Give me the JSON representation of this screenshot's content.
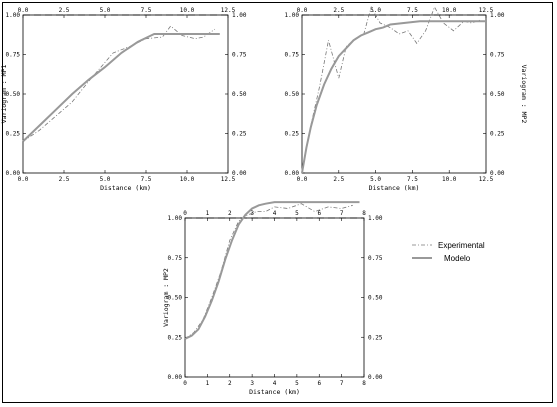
{
  "chart_data": [
    {
      "type": "line",
      "xlabel": "Distance (km)",
      "ylabel": "Variogram : MP1",
      "xlim": [
        0,
        12.5
      ],
      "ylim": [
        0,
        1.0
      ],
      "xticks": [
        "0.0",
        "2.5",
        "5.0",
        "7.5",
        "10.0",
        "12.5"
      ],
      "yticks": [
        "0.00",
        "0.25",
        "0.50",
        "0.75",
        "1.00"
      ],
      "sill": 1.0,
      "series": [
        {
          "x": [
            0.0,
            1.0,
            2.0,
            3.0,
            4.0,
            5.0,
            5.5,
            6.5,
            7.5,
            8.5,
            9.0,
            9.7,
            10.5,
            11.0,
            11.7
          ],
          "y": [
            0.2,
            0.27,
            0.36,
            0.45,
            0.58,
            0.7,
            0.76,
            0.8,
            0.85,
            0.86,
            0.93,
            0.87,
            0.85,
            0.86,
            0.91
          ]
        },
        {
          "x": [
            0.0,
            1.0,
            2.0,
            3.0,
            4.0,
            5.0,
            6.0,
            7.0,
            8.0,
            9.0,
            10.0,
            11.0,
            12.0
          ],
          "y": [
            0.2,
            0.3,
            0.4,
            0.5,
            0.59,
            0.67,
            0.76,
            0.83,
            0.88,
            0.88,
            0.88,
            0.88,
            0.88
          ]
        }
      ]
    },
    {
      "type": "line",
      "xlabel": "Distance (km)",
      "ylabel": "Variogram : MP2",
      "xlim": [
        0,
        12.5
      ],
      "ylim": [
        0,
        1.0
      ],
      "xticks": [
        "0.0",
        "2.5",
        "5.0",
        "7.5",
        "10.0",
        "12.5"
      ],
      "yticks": [
        "0.00",
        "0.25",
        "0.50",
        "0.75",
        "1.00"
      ],
      "sill": 1.0,
      "series": [
        {
          "x": [
            0.0,
            0.6,
            1.2,
            1.8,
            2.5,
            3.0,
            3.6,
            4.2,
            4.7,
            5.3,
            6.0,
            6.6,
            7.2,
            7.8,
            8.4,
            9.0,
            9.6,
            10.3,
            11.0,
            11.5,
            12.2
          ],
          "y": [
            0.02,
            0.3,
            0.55,
            0.84,
            0.6,
            0.8,
            0.85,
            0.88,
            1.05,
            0.95,
            0.92,
            0.88,
            0.9,
            0.82,
            0.9,
            1.05,
            0.95,
            0.9,
            0.96,
            0.95,
            0.97
          ]
        },
        {
          "x": [
            0.0,
            0.3,
            0.6,
            1.0,
            1.5,
            2.0,
            2.5,
            3.0,
            3.5,
            4.0,
            4.5,
            5.0,
            5.5,
            6.0,
            7.0,
            8.0,
            9.0,
            10.0,
            11.0,
            12.5
          ],
          "y": [
            0.0,
            0.16,
            0.29,
            0.43,
            0.56,
            0.66,
            0.74,
            0.79,
            0.84,
            0.87,
            0.89,
            0.91,
            0.92,
            0.94,
            0.95,
            0.96,
            0.96,
            0.96,
            0.96,
            0.96
          ]
        }
      ]
    },
    {
      "type": "line",
      "xlabel": "Distance (km)",
      "ylabel": "Variogram : MP2",
      "xlim": [
        0,
        8
      ],
      "ylim": [
        0,
        1.0
      ],
      "xticks": [
        "0",
        "1",
        "2",
        "3",
        "4",
        "5",
        "6",
        "7",
        "8"
      ],
      "yticks": [
        "0.00",
        "0.25",
        "0.50",
        "0.75",
        "1.00"
      ],
      "sill": 1.0,
      "series": [
        {
          "name": "Experimental",
          "x": [
            0.0,
            0.4,
            0.8,
            1.2,
            1.6,
            2.0,
            2.4,
            2.8,
            3.2,
            3.6,
            4.0,
            4.6,
            5.2,
            5.8,
            6.4,
            7.0,
            7.5
          ],
          "y": [
            0.24,
            0.28,
            0.36,
            0.5,
            0.66,
            0.86,
            0.98,
            1.02,
            1.04,
            1.04,
            1.07,
            1.06,
            1.09,
            1.04,
            1.07,
            1.06,
            1.08
          ]
        },
        {
          "name": "Modelo",
          "x": [
            0.0,
            0.3,
            0.6,
            0.9,
            1.2,
            1.5,
            1.8,
            2.1,
            2.4,
            2.7,
            3.0,
            3.3,
            3.6,
            4.0,
            4.5,
            5.0,
            6.0,
            7.0,
            7.8
          ],
          "y": [
            0.24,
            0.26,
            0.3,
            0.38,
            0.48,
            0.6,
            0.74,
            0.86,
            0.96,
            1.02,
            1.06,
            1.08,
            1.09,
            1.1,
            1.1,
            1.1,
            1.1,
            1.1,
            1.1
          ]
        }
      ]
    }
  ],
  "legend": {
    "experimental_label": "Experimental",
    "model_label": "Modelo"
  },
  "colors": {
    "experimental": "#777777",
    "model": "#999999",
    "sill": "#000000",
    "axis": "#000000"
  }
}
